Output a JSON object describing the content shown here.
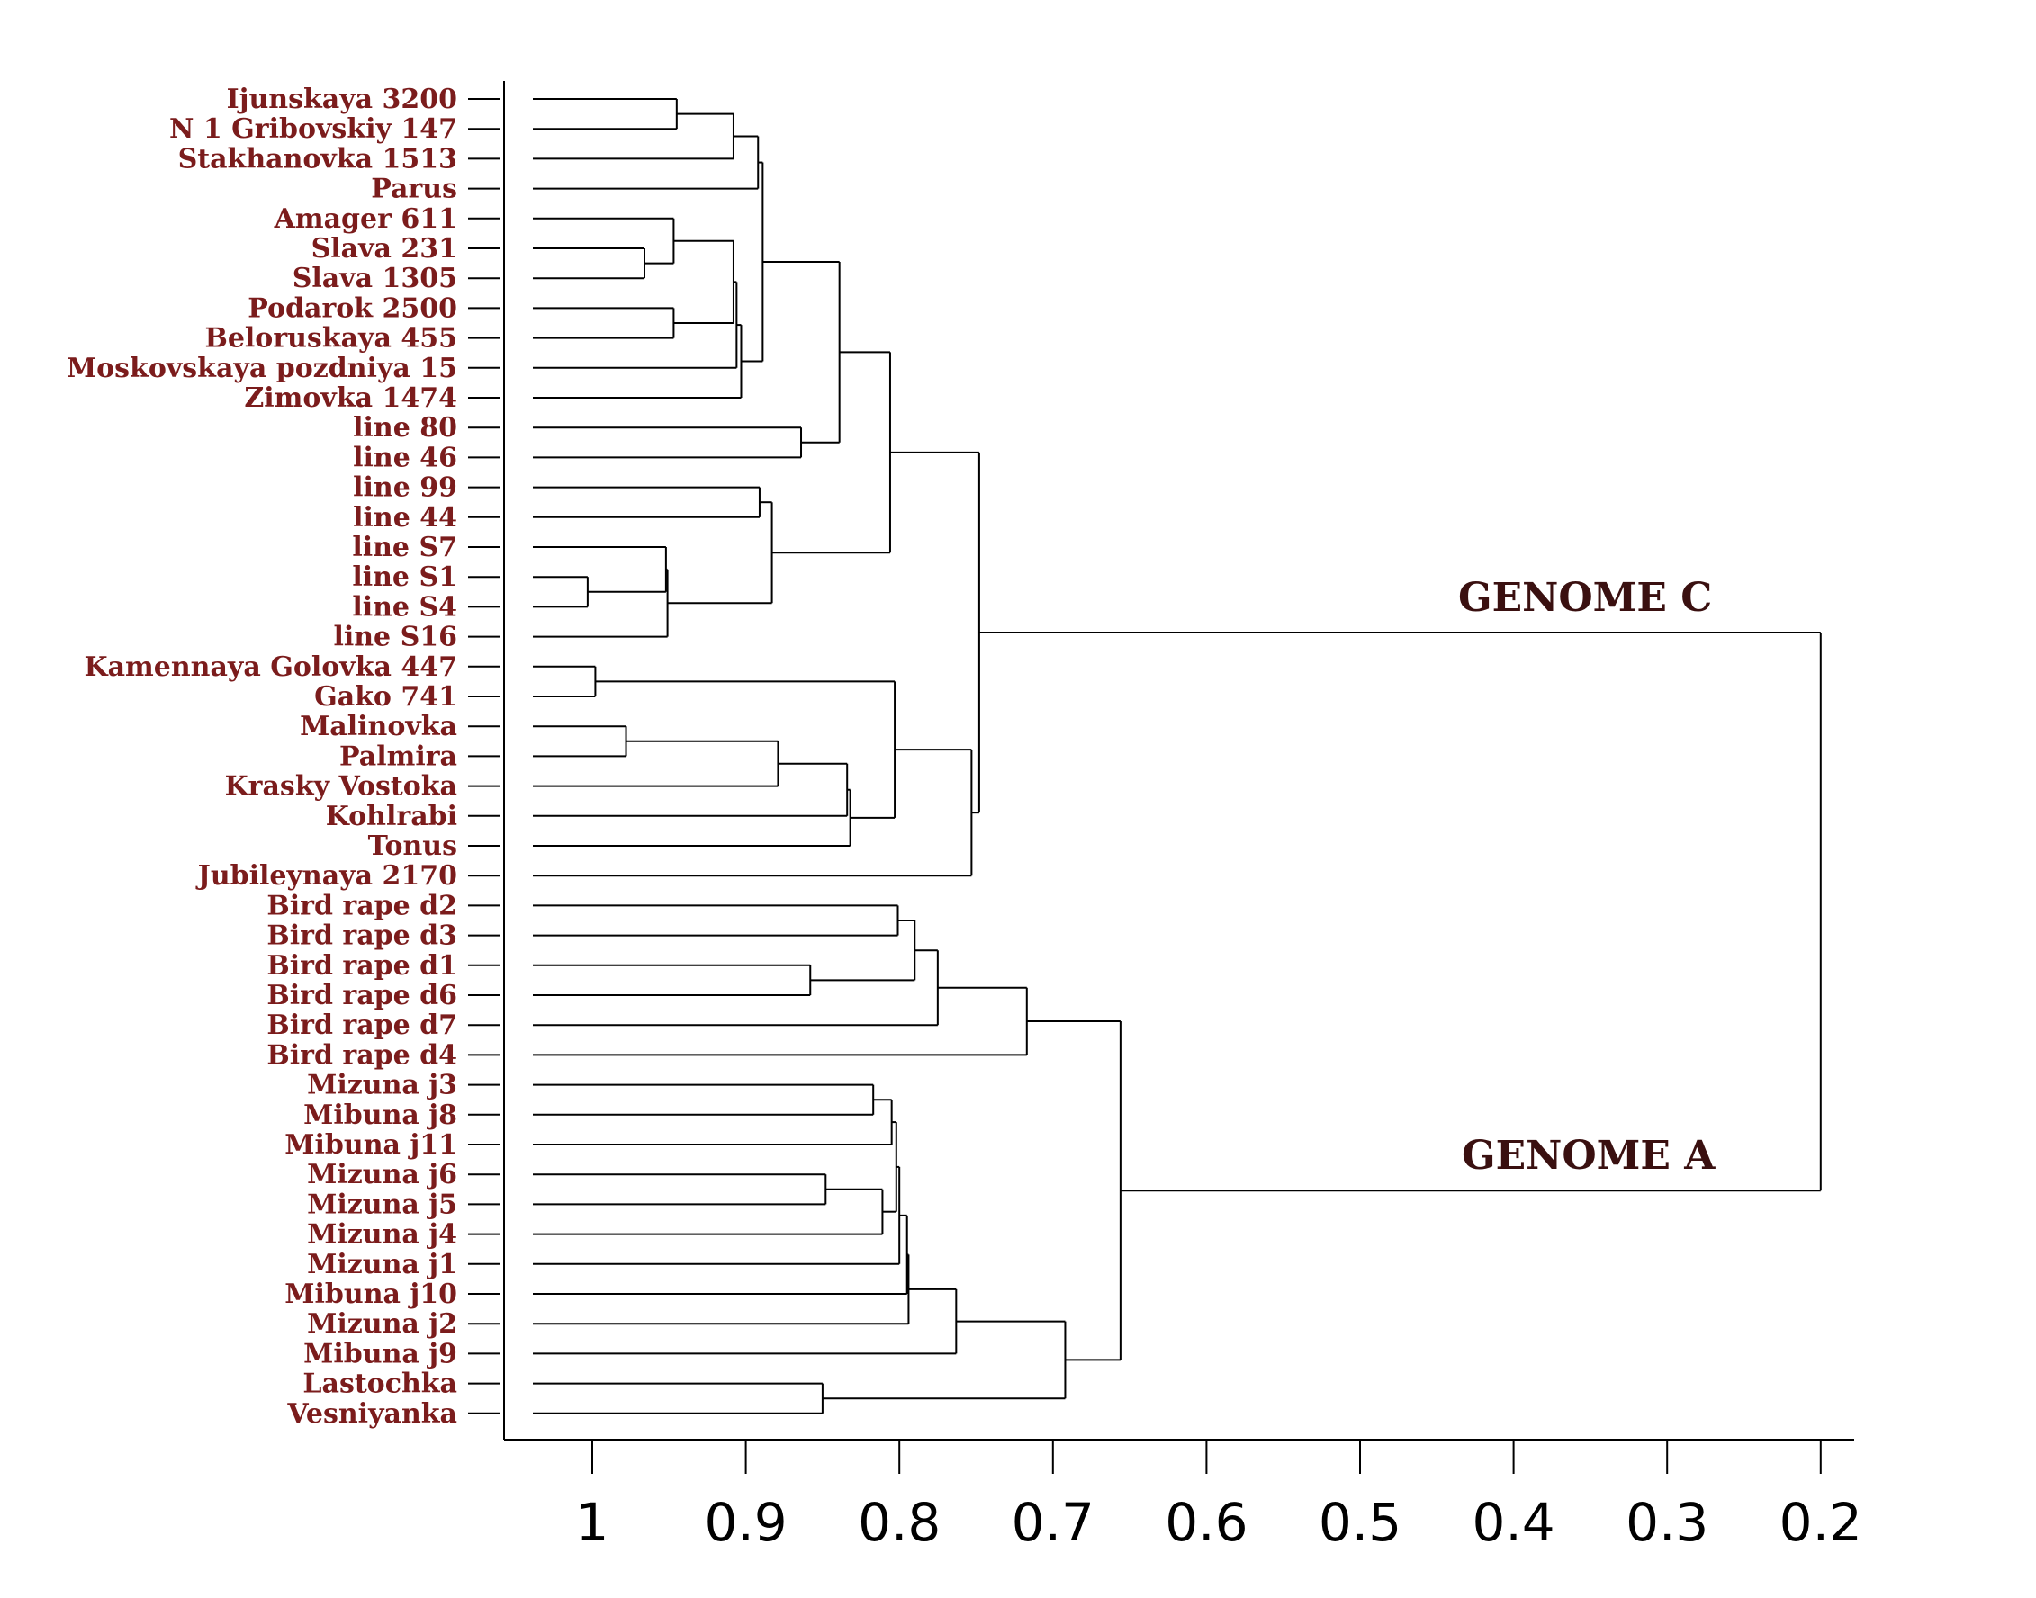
{
  "chart_data": {
    "type": "dendrogram",
    "title": "",
    "xlabel": "",
    "ylabel": "",
    "xlim": [
      1.06,
      0.18
    ],
    "ticks": [
      1,
      0.9,
      0.8,
      0.7,
      0.6,
      0.5,
      0.4,
      0.3,
      0.2
    ],
    "tick_labels": [
      "1",
      "0.9",
      "0.8",
      "0.7",
      "0.6",
      "0.5",
      "0.4",
      "0.3",
      "0.2"
    ],
    "group_labels": [
      {
        "text": "GENOME C",
        "cluster": "C"
      },
      {
        "text": "GENOME A",
        "cluster": "A"
      }
    ],
    "colors": {
      "label": "#7b1c1c",
      "group": "#3a1010",
      "line": "#000000"
    },
    "leaves": [
      "Ijunskaya 3200",
      "N 1 Gribovskiy 147",
      "Stakhanovka 1513",
      "Parus",
      "Amager 611",
      "Slava 231",
      "Slava 1305",
      "Podarok 2500",
      "Beloruskaya 455",
      "Moskovskaya pozdniya 15",
      "Zimovka 1474",
      "line 80",
      "line 46",
      "line 99",
      "line 44",
      "line S7",
      "line S1",
      "line S4",
      "line S16",
      "Kamennaya Golovka 447",
      "Gako 741",
      "Malinovka",
      "Palmira",
      "Krasky Vostoka",
      "Kohlrabi",
      "Tonus",
      "Jubileynaya 2170",
      "Bird rape d2",
      "Bird rape d3",
      "Bird rape d1",
      "Bird rape d6",
      "Bird rape d7",
      "Bird rape d4",
      "Mizuna j3",
      "Mibuna j8",
      "Mibuna j11",
      "Mizuna j6",
      "Mizuna j5",
      "Mizuna j4",
      "Mizuna j1",
      "Mibuna j10",
      "Mizuna j2",
      "Mibuna j9",
      "Lastochka",
      "Vesniyanka"
    ],
    "merges": [
      {
        "id": "n1",
        "children": [
          "Ijunskaya 3200",
          "N 1 Gribovskiy 147"
        ],
        "height": 0.945
      },
      {
        "id": "n2",
        "children": [
          "n1",
          "Stakhanovka 1513"
        ],
        "height": 0.908
      },
      {
        "id": "n3",
        "children": [
          "n2",
          "Parus"
        ],
        "height": 0.892
      },
      {
        "id": "n4",
        "children": [
          "Slava 231",
          "Slava 1305"
        ],
        "height": 0.966
      },
      {
        "id": "n5",
        "children": [
          "Amager 611",
          "n4"
        ],
        "height": 0.947
      },
      {
        "id": "n6",
        "children": [
          "Podarok 2500",
          "Beloruskaya 455"
        ],
        "height": 0.947
      },
      {
        "id": "n7",
        "children": [
          "n5",
          "n6"
        ],
        "height": 0.908
      },
      {
        "id": "n8",
        "children": [
          "n7",
          "Moskovskaya pozdniya 15"
        ],
        "height": 0.906
      },
      {
        "id": "n9",
        "children": [
          "n8",
          "Zimovka 1474"
        ],
        "height": 0.903
      },
      {
        "id": "n10",
        "children": [
          "n3",
          "n9"
        ],
        "height": 0.889
      },
      {
        "id": "n11",
        "children": [
          "line 80",
          "line 46"
        ],
        "height": 0.864
      },
      {
        "id": "n12",
        "children": [
          "n10",
          "n11"
        ],
        "height": 0.839
      },
      {
        "id": "n13",
        "children": [
          "line 99",
          "line 44"
        ],
        "height": 0.891
      },
      {
        "id": "n14",
        "children": [
          "line S1",
          "line S4"
        ],
        "height": 1.003
      },
      {
        "id": "n15",
        "children": [
          "line S7",
          "n14"
        ],
        "height": 0.952
      },
      {
        "id": "n16",
        "children": [
          "n15",
          "line S16"
        ],
        "height": 0.951
      },
      {
        "id": "n17",
        "children": [
          "n13",
          "n16"
        ],
        "height": 0.883
      },
      {
        "id": "n18",
        "children": [
          "n12",
          "n17"
        ],
        "height": 0.806
      },
      {
        "id": "n19",
        "children": [
          "Kamennaya Golovka 447",
          "Gako 741"
        ],
        "height": 0.998
      },
      {
        "id": "n20",
        "children": [
          "Malinovka",
          "Palmira"
        ],
        "height": 0.978
      },
      {
        "id": "n21",
        "children": [
          "n20",
          "Krasky Vostoka"
        ],
        "height": 0.879
      },
      {
        "id": "n22",
        "children": [
          "n21",
          "Kohlrabi"
        ],
        "height": 0.834
      },
      {
        "id": "n23",
        "children": [
          "n22",
          "Tonus"
        ],
        "height": 0.832
      },
      {
        "id": "n24",
        "children": [
          "n19",
          "n23"
        ],
        "height": 0.803
      },
      {
        "id": "n25",
        "children": [
          "n24",
          "Jubileynaya 2170"
        ],
        "height": 0.753
      },
      {
        "id": "C",
        "children": [
          "n18",
          "n25"
        ],
        "height": 0.748
      },
      {
        "id": "n27",
        "children": [
          "Bird rape d2",
          "Bird rape d3"
        ],
        "height": 0.801
      },
      {
        "id": "n28",
        "children": [
          "Bird rape d1",
          "Bird rape d6"
        ],
        "height": 0.858
      },
      {
        "id": "n29",
        "children": [
          "n27",
          "n28"
        ],
        "height": 0.79
      },
      {
        "id": "n30",
        "children": [
          "n29",
          "Bird rape d7"
        ],
        "height": 0.775
      },
      {
        "id": "n31",
        "children": [
          "n30",
          "Bird rape d4"
        ],
        "height": 0.717
      },
      {
        "id": "n32",
        "children": [
          "Mizuna j3",
          "Mibuna j8"
        ],
        "height": 0.817
      },
      {
        "id": "n33",
        "children": [
          "n32",
          "Mibuna j11"
        ],
        "height": 0.805
      },
      {
        "id": "n34",
        "children": [
          "Mizuna j6",
          "Mizuna j5"
        ],
        "height": 0.848
      },
      {
        "id": "n35",
        "children": [
          "n34",
          "Mizuna j4"
        ],
        "height": 0.811
      },
      {
        "id": "n36",
        "children": [
          "n33",
          "n35"
        ],
        "height": 0.802
      },
      {
        "id": "n37",
        "children": [
          "n36",
          "Mizuna j1"
        ],
        "height": 0.8
      },
      {
        "id": "n38",
        "children": [
          "n37",
          "Mibuna j10"
        ],
        "height": 0.795
      },
      {
        "id": "n39",
        "children": [
          "n38",
          "Mizuna j2"
        ],
        "height": 0.794
      },
      {
        "id": "n40",
        "children": [
          "n39",
          "Mibuna j9"
        ],
        "height": 0.763
      },
      {
        "id": "n41",
        "children": [
          "Lastochka",
          "Vesniyanka"
        ],
        "height": 0.85
      },
      {
        "id": "n42",
        "children": [
          "n40",
          "n41"
        ],
        "height": 0.692
      },
      {
        "id": "A",
        "children": [
          "n31",
          "n42"
        ],
        "height": 0.656
      },
      {
        "id": "root",
        "children": [
          "C",
          "A"
        ],
        "height": 0.2
      }
    ]
  }
}
